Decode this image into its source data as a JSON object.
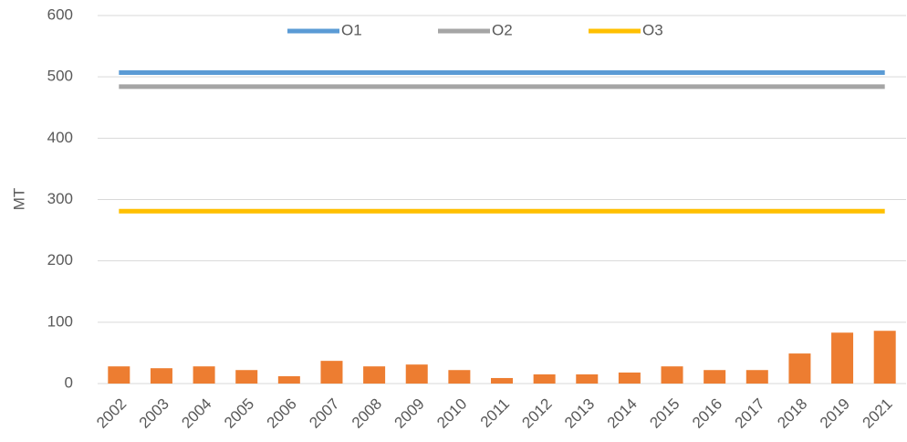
{
  "chart_data": {
    "type": "bar",
    "y_label": "MT",
    "categories": [
      "2002",
      "2003",
      "2004",
      "2005",
      "2006",
      "2007",
      "2008",
      "2009",
      "2010",
      "2011",
      "2012",
      "2013",
      "2014",
      "2015",
      "2016",
      "2017",
      "2018",
      "2019",
      "2021"
    ],
    "series": [
      {
        "color": "#ed7d31",
        "values": [
          28,
          25,
          28,
          22,
          12,
          37,
          28,
          31,
          22,
          9,
          15,
          15,
          18,
          28,
          22,
          22,
          49,
          83,
          86
        ]
      },
      {
        "name": "O1",
        "type": "line",
        "color": "#5b9bd5",
        "values": [
          507,
          507,
          507,
          507,
          507,
          507,
          507,
          507,
          507,
          507,
          507,
          507,
          507,
          507,
          507,
          507,
          507,
          507,
          507
        ]
      },
      {
        "name": "O2",
        "type": "line",
        "color": "#a5a5a5",
        "values": [
          484,
          484,
          484,
          484,
          484,
          484,
          484,
          484,
          484,
          484,
          484,
          484,
          484,
          484,
          484,
          484,
          484,
          484,
          484
        ]
      },
      {
        "name": "O3",
        "type": "line",
        "color": "#ffc000",
        "values": [
          281,
          281,
          281,
          281,
          281,
          281,
          281,
          281,
          281,
          281,
          281,
          281,
          281,
          281,
          281,
          281,
          281,
          281,
          281
        ]
      }
    ],
    "ylim": [
      0,
      600
    ],
    "yticks": [
      0,
      100,
      200,
      300,
      400,
      500,
      600
    ],
    "grid": true,
    "legend": "top"
  }
}
